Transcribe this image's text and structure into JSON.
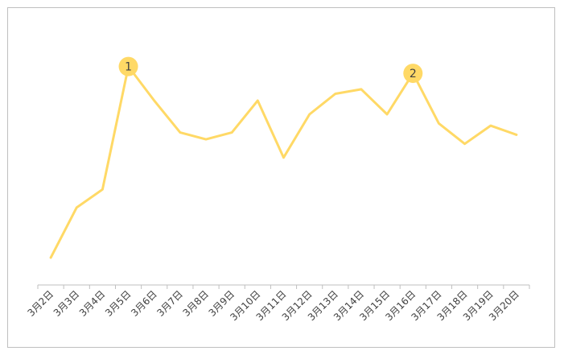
{
  "chart_data": {
    "type": "line",
    "title": "",
    "xlabel": "",
    "ylabel": "",
    "categories": [
      "3月2日",
      "3月3日",
      "3月4日",
      "3月5日",
      "3月6日",
      "3月7日",
      "3月8日",
      "3月9日",
      "3月10日",
      "3月11日",
      "3月12日",
      "3月13日",
      "3月14日",
      "3月15日",
      "3月16日",
      "3月17日",
      "3月18日",
      "3月19日",
      "3月20日"
    ],
    "series": [
      {
        "values": [
          12,
          34,
          42,
          96,
          81,
          67,
          64,
          67,
          81,
          56,
          75,
          84,
          86,
          75,
          93,
          71,
          62,
          70,
          66
        ]
      }
    ],
    "ylim": [
      0,
      104
    ],
    "grid": false,
    "line_color": "#FFD966",
    "marker_color": "#FFD966",
    "annotations": [
      {
        "index": 3,
        "text": "1"
      },
      {
        "index": 14,
        "text": "2"
      }
    ]
  }
}
